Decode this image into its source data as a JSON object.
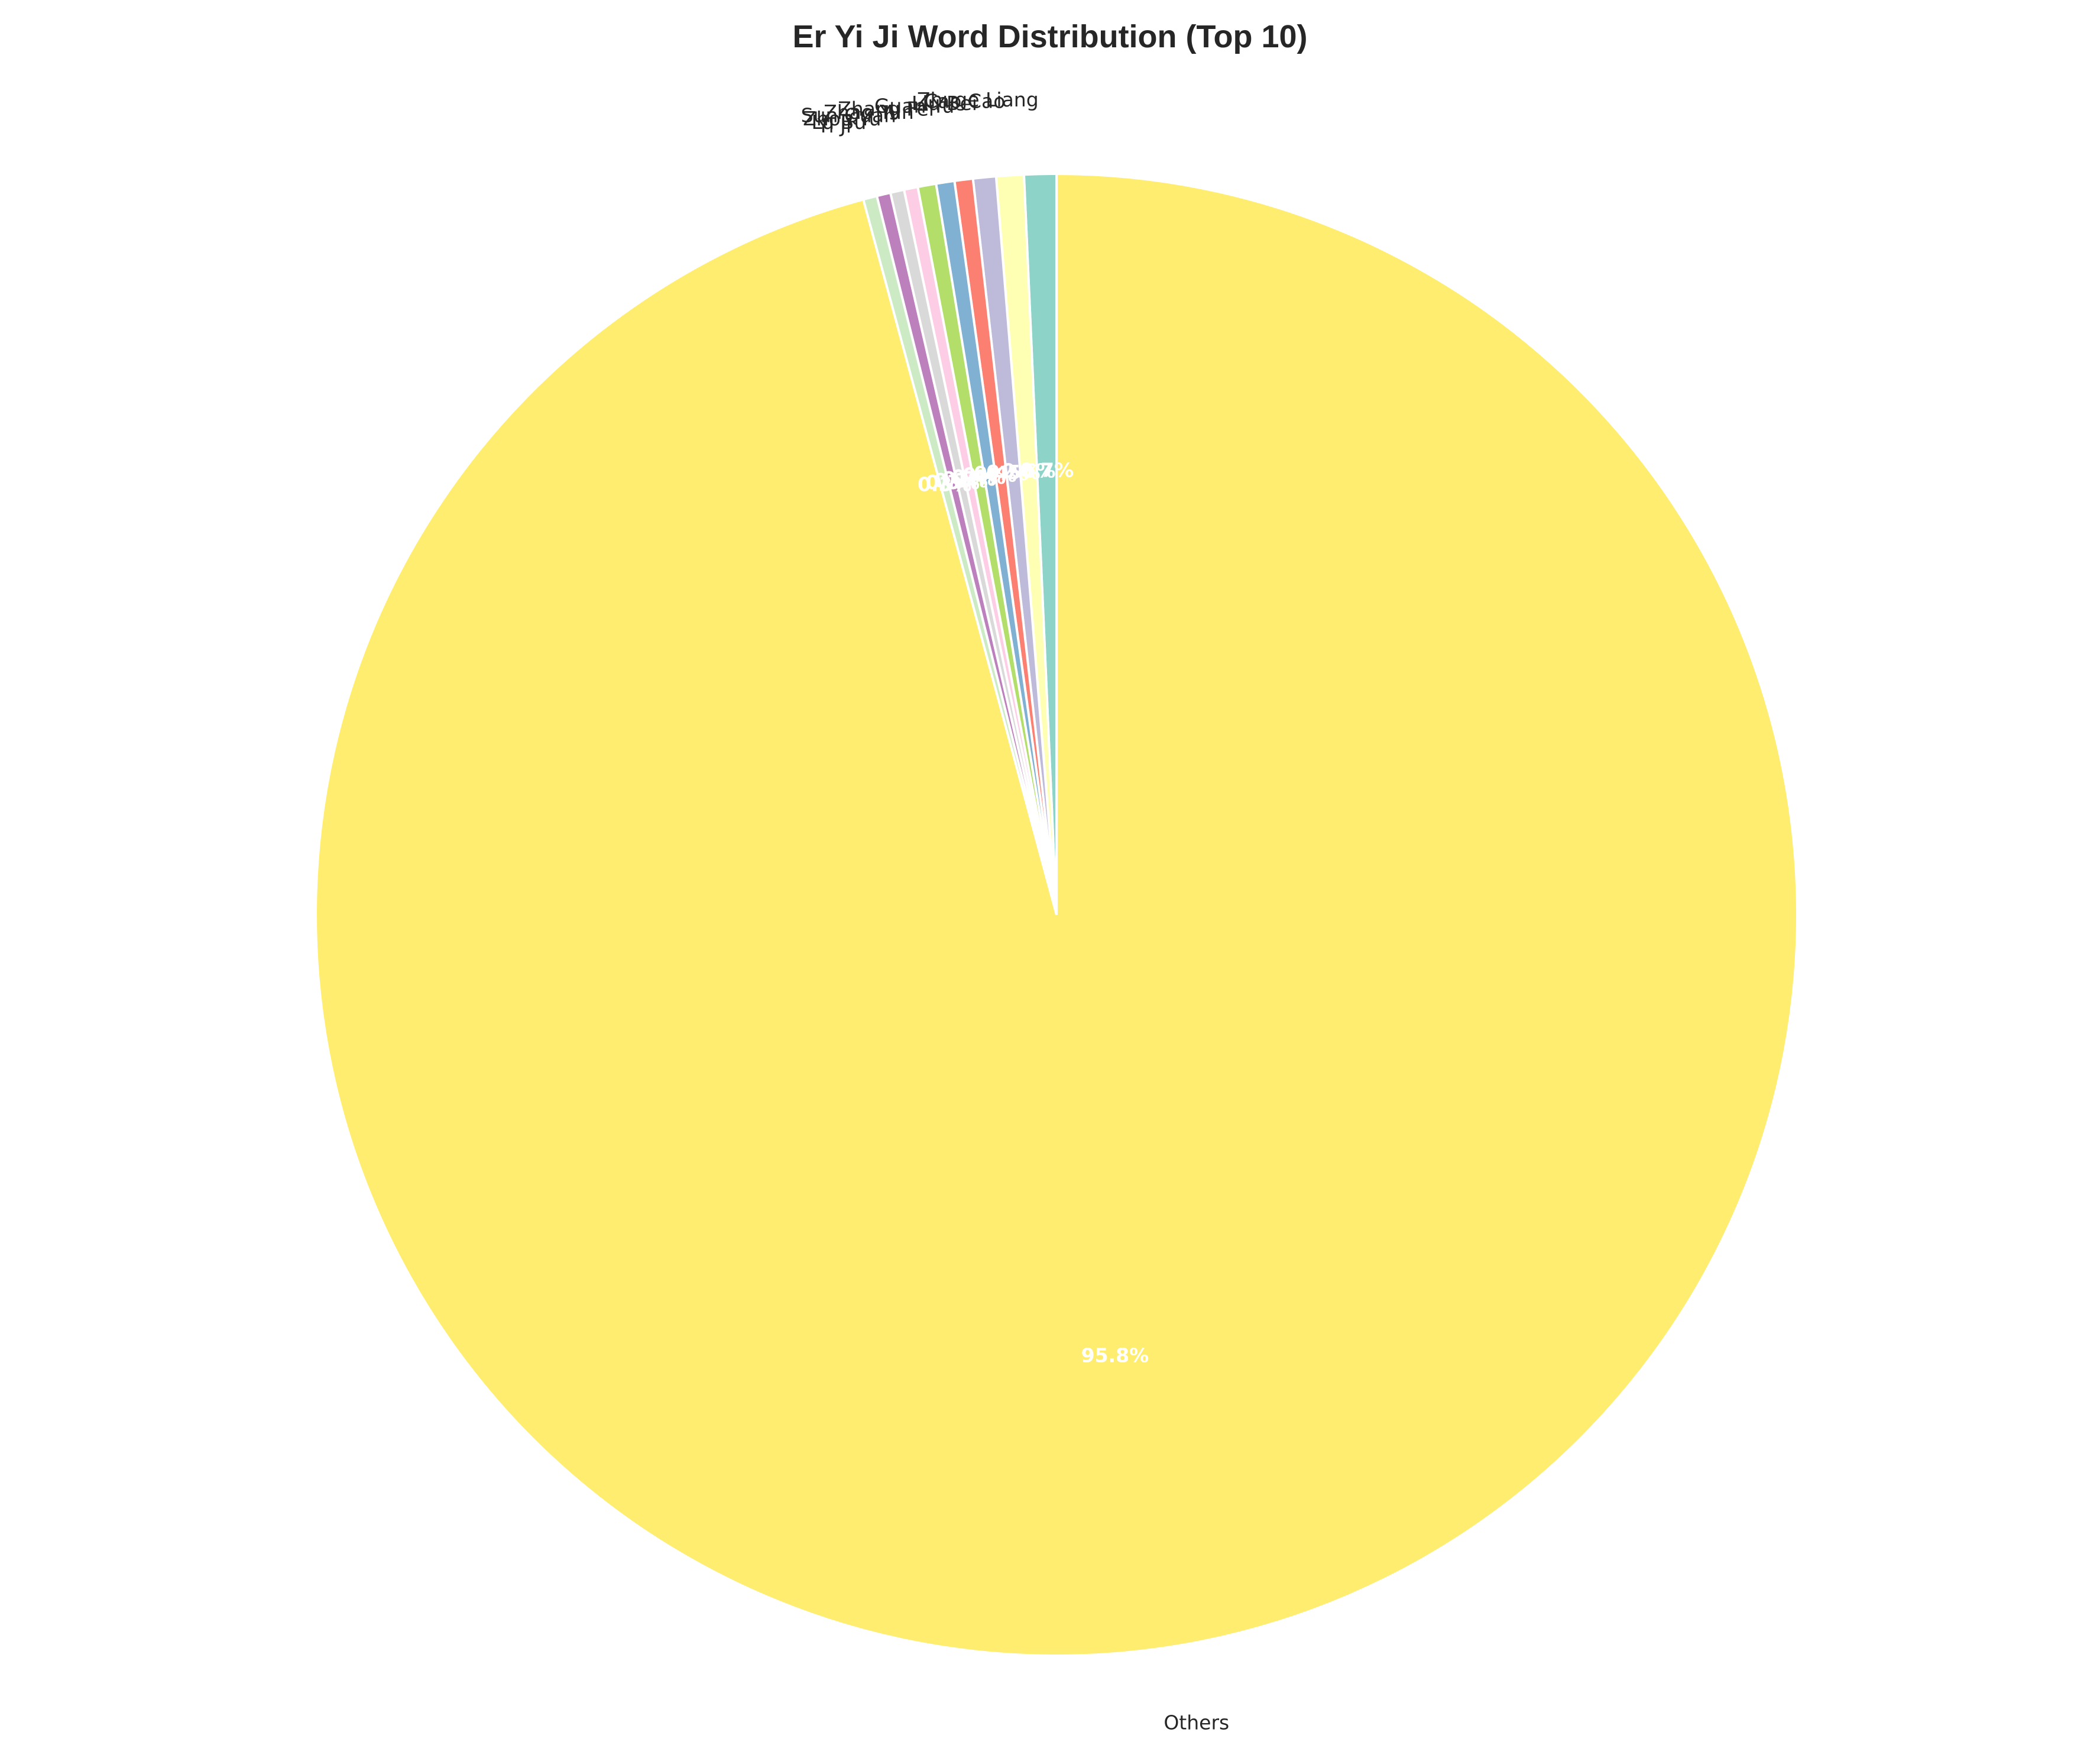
{
  "chart_data": {
    "type": "pie",
    "title": "Er Yi Ji Word Distribution (Top 10)",
    "start_angle_deg": 90,
    "direction": "counterclockwise",
    "slices": [
      {
        "label": "Zhuge Liang",
        "value": 0.7,
        "pct_text": "0.7%",
        "color": "#8dd3c7"
      },
      {
        "label": "Cao Cao",
        "value": 0.6,
        "pct_text": "0.6%",
        "color": "#ffffb3"
      },
      {
        "label": "Liu Bei",
        "value": 0.5,
        "pct_text": "0.5%",
        "color": "#bebada"
      },
      {
        "label": "Guan Yu",
        "value": 0.4,
        "pct_text": "0.4%",
        "color": "#fb8072"
      },
      {
        "label": "Zhang Fei",
        "value": 0.4,
        "pct_text": "0.4%",
        "color": "#80b1d3"
      },
      {
        "label": "Zhao Yun",
        "value": 0.4,
        "pct_text": "0.4%",
        "color": "#b3de69"
      },
      {
        "label": "Sun Quan",
        "value": 0.3,
        "pct_text": "0.3%",
        "color": "#fccde5"
      },
      {
        "label": "Zhou Yu",
        "value": 0.3,
        "pct_text": "0.3%",
        "color": "#d9d9d9"
      },
      {
        "label": "Lu Bu",
        "value": 0.3,
        "pct_text": "0.3%",
        "color": "#bc80bd"
      },
      {
        "label": "Yi Ji",
        "value": 0.3,
        "pct_text": "0.3%",
        "color": "#ccebc5"
      },
      {
        "label": "Others",
        "value": 95.8,
        "pct_text": "95.8%",
        "color": "#ffed6f"
      }
    ]
  }
}
